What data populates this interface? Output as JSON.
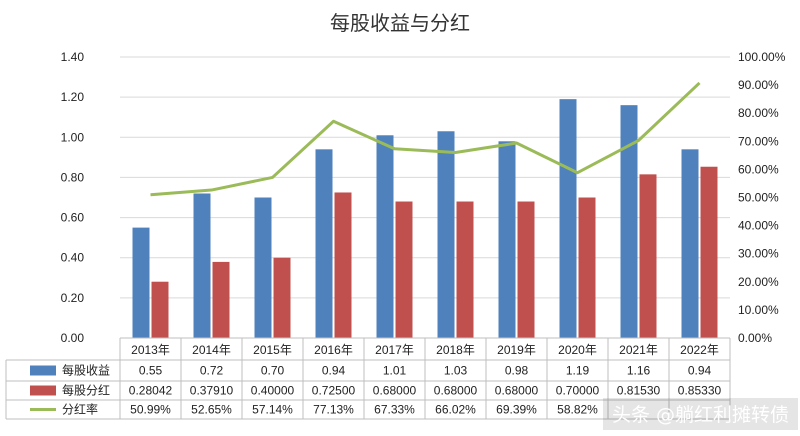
{
  "chart_data": {
    "type": "bar",
    "title": "每股收益与分红",
    "categories": [
      "2013年",
      "2014年",
      "2015年",
      "2016年",
      "2017年",
      "2018年",
      "2019年",
      "2020年",
      "2021年",
      "2022年"
    ],
    "series": [
      {
        "name": "每股收益",
        "kind": "bar",
        "axis": "left",
        "color": "#4f81bd",
        "values": [
          0.55,
          0.72,
          0.7,
          0.94,
          1.01,
          1.03,
          0.98,
          1.19,
          1.16,
          0.94
        ],
        "labels": [
          "0.55",
          "0.72",
          "0.70",
          "0.94",
          "1.01",
          "1.03",
          "0.98",
          "1.19",
          "1.16",
          "0.94"
        ]
      },
      {
        "name": "每股分红",
        "kind": "bar",
        "axis": "left",
        "color": "#c0504d",
        "values": [
          0.28042,
          0.3791,
          0.4,
          0.725,
          0.68,
          0.68,
          0.68,
          0.7,
          0.8153,
          0.8533
        ],
        "labels": [
          "0.28042",
          "0.37910",
          "0.40000",
          "0.72500",
          "0.68000",
          "0.68000",
          "0.68000",
          "0.70000",
          "0.81530",
          "0.85330"
        ]
      },
      {
        "name": "分红率",
        "kind": "line",
        "axis": "right",
        "color": "#9bbb59",
        "values": [
          50.99,
          52.65,
          57.14,
          77.13,
          67.33,
          66.02,
          69.39,
          58.82,
          70.28,
          90.78
        ],
        "labels": [
          "50.99%",
          "52.65%",
          "57.14%",
          "77.13%",
          "67.33%",
          "66.02%",
          "69.39%",
          "58.82%",
          "",
          ""
        ]
      }
    ],
    "y_left": {
      "ylim": [
        0,
        1.4
      ],
      "ticks": [
        "0.00",
        "0.20",
        "0.40",
        "0.60",
        "0.80",
        "1.00",
        "1.20",
        "1.40"
      ]
    },
    "y_right": {
      "ylim": [
        0,
        100
      ],
      "ticks": [
        "0.00%",
        "10.00%",
        "20.00%",
        "30.00%",
        "40.00%",
        "50.00%",
        "60.00%",
        "70.00%",
        "80.00%",
        "90.00%",
        "100.00%"
      ]
    },
    "grid": true,
    "legend": "data-table"
  },
  "watermark": "头条 @躺红利摊转债"
}
